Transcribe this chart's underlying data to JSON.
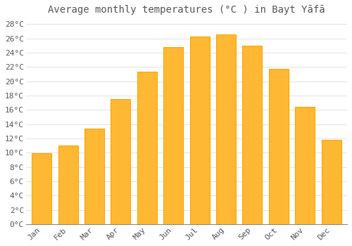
{
  "title": "Average monthly temperatures (°C ) in Bayt Yāfā",
  "months": [
    "Jan",
    "Feb",
    "Mar",
    "Apr",
    "May",
    "Jun",
    "Jul",
    "Aug",
    "Sep",
    "Oct",
    "Nov",
    "Dec"
  ],
  "temperatures": [
    9.9,
    11.0,
    13.4,
    17.5,
    21.3,
    24.8,
    26.3,
    26.6,
    25.0,
    21.7,
    16.4,
    11.8
  ],
  "bar_color_top": "#FFA500",
  "bar_color_bottom": "#FFD966",
  "bar_edge_color": "#FFA500",
  "background_color": "#FFFFFF",
  "grid_color": "#DDDDDD",
  "text_color": "#555555",
  "ylim": [
    0,
    28
  ],
  "ytick_step": 2,
  "title_fontsize": 10,
  "tick_fontsize": 8,
  "font_family": "monospace"
}
